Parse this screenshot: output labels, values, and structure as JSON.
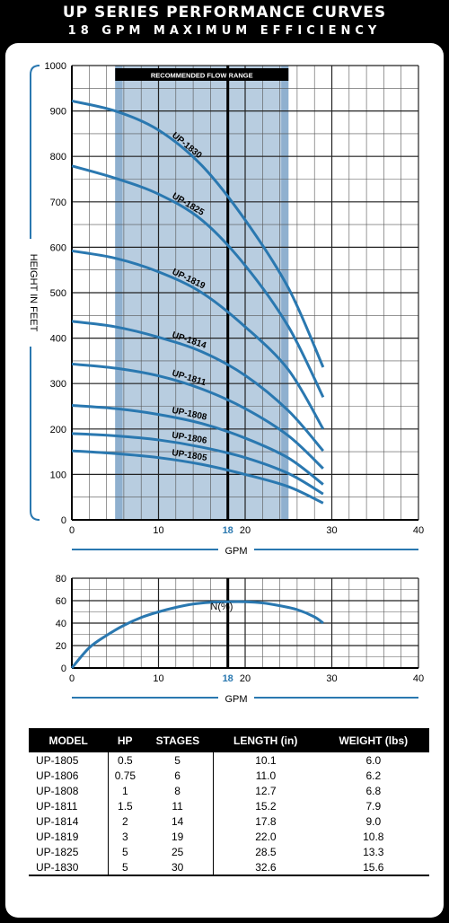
{
  "title": "UP SERIES PERFORMANCE CURVES",
  "subtitle": "18 GPM MAXIMUM EFFICIENCY",
  "colors": {
    "curve": "#2a78b0",
    "band": "#b8cde0",
    "band_dark": "#8fb0cf",
    "highlight_tick": "#2a78b0"
  },
  "chart_data": [
    {
      "type": "line",
      "title": "",
      "xlabel": "GPM",
      "ylabel": "HEIGHT IN FEET",
      "xlim": [
        0,
        40
      ],
      "ylim": [
        0,
        1000
      ],
      "xticks": [
        0,
        10,
        20,
        30,
        40
      ],
      "yticks": [
        0,
        100,
        200,
        300,
        400,
        500,
        600,
        700,
        800,
        900,
        1000
      ],
      "highlight_x": {
        "value": 18,
        "label": "18"
      },
      "band": {
        "label": "RECOMMENDED FLOW RANGE",
        "x": [
          5,
          25
        ]
      },
      "grid": true,
      "series": [
        {
          "name": "UP-1830",
          "x": [
            0,
            5,
            10,
            15,
            20,
            25,
            29
          ],
          "y": [
            922,
            900,
            858,
            780,
            660,
            510,
            336
          ]
        },
        {
          "name": "UP-1825",
          "x": [
            0,
            5,
            10,
            15,
            20,
            25,
            29
          ],
          "y": [
            779,
            752,
            717,
            660,
            560,
            425,
            270
          ]
        },
        {
          "name": "UP-1819",
          "x": [
            0,
            5,
            10,
            15,
            20,
            25,
            29
          ],
          "y": [
            592,
            576,
            546,
            500,
            425,
            330,
            200
          ]
        },
        {
          "name": "UP-1814",
          "x": [
            0,
            5,
            10,
            15,
            20,
            25,
            29
          ],
          "y": [
            437,
            425,
            402,
            370,
            318,
            240,
            152
          ]
        },
        {
          "name": "UP-1811",
          "x": [
            0,
            5,
            10,
            15,
            20,
            25,
            29
          ],
          "y": [
            343,
            334,
            317,
            288,
            245,
            185,
            113
          ]
        },
        {
          "name": "UP-1808",
          "x": [
            0,
            5,
            10,
            15,
            20,
            25,
            29
          ],
          "y": [
            252,
            245,
            232,
            212,
            180,
            136,
            78
          ]
        },
        {
          "name": "UP-1806",
          "x": [
            0,
            5,
            10,
            15,
            20,
            25,
            29
          ],
          "y": [
            190,
            185,
            176,
            160,
            137,
            102,
            57
          ]
        },
        {
          "name": "UP-1805",
          "x": [
            0,
            5,
            10,
            15,
            20,
            25,
            29
          ],
          "y": [
            152,
            146,
            137,
            122,
            100,
            73,
            37
          ]
        }
      ]
    },
    {
      "type": "line",
      "title": "",
      "xlabel": "GPM",
      "ylabel": "",
      "xlim": [
        0,
        40
      ],
      "ylim": [
        0,
        80
      ],
      "xticks": [
        0,
        10,
        20,
        30,
        40
      ],
      "yticks": [
        0,
        20,
        40,
        60,
        80
      ],
      "highlight_x": {
        "value": 18,
        "label": "18"
      },
      "grid": true,
      "series": [
        {
          "name": "N(%)",
          "x": [
            0,
            2,
            4,
            6,
            8,
            10,
            12,
            14,
            16,
            18,
            20,
            22,
            24,
            26,
            28,
            29
          ],
          "y": [
            0,
            18,
            29,
            38,
            45,
            50,
            54,
            57,
            58.5,
            59,
            59,
            58,
            55.5,
            52,
            45.5,
            40
          ]
        }
      ]
    }
  ],
  "table": {
    "headers": [
      "MODEL",
      "HP",
      "STAGES",
      "LENGTH (in)",
      "WEIGHT (lbs)"
    ],
    "rows": [
      [
        "UP-1805",
        "0.5",
        "5",
        "10.1",
        "6.0"
      ],
      [
        "UP-1806",
        "0.75",
        "6",
        "11.0",
        "6.2"
      ],
      [
        "UP-1808",
        "1",
        "8",
        "12.7",
        "6.8"
      ],
      [
        "UP-1811",
        "1.5",
        "11",
        "15.2",
        "7.9"
      ],
      [
        "UP-1814",
        "2",
        "14",
        "17.8",
        "9.0"
      ],
      [
        "UP-1819",
        "3",
        "19",
        "22.0",
        "10.8"
      ],
      [
        "UP-1825",
        "5",
        "25",
        "28.5",
        "13.3"
      ],
      [
        "UP-1830",
        "5",
        "30",
        "32.6",
        "15.6"
      ]
    ]
  }
}
